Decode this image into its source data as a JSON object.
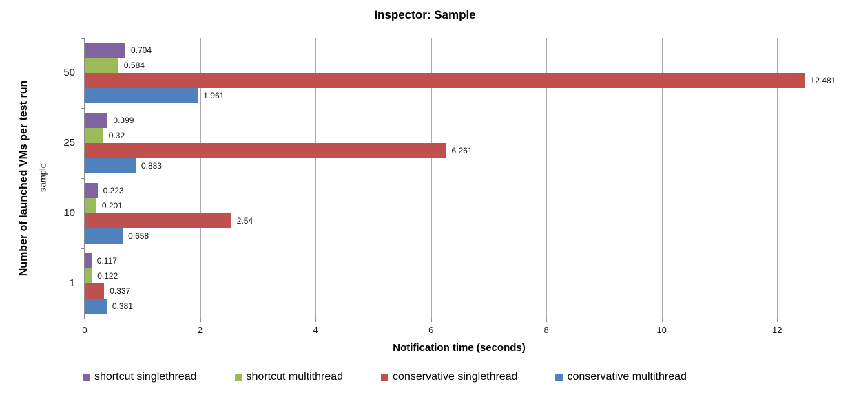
{
  "title": "Inspector: Sample",
  "chart_data": {
    "type": "bar",
    "orientation": "horizontal",
    "title": "Inspector: Sample",
    "xlabel": "Notification time (seconds)",
    "ylabel_outer": "Number of launched VMs per test run",
    "ylabel_inner": "sample",
    "categories": [
      "50",
      "25",
      "10",
      "1"
    ],
    "series": [
      {
        "name": "shortcut singlethread",
        "color": "#8064A2",
        "values": [
          0.704,
          0.399,
          0.223,
          0.117
        ],
        "labels": [
          "0.704",
          "0.399",
          "0.223",
          "0.117"
        ]
      },
      {
        "name": "shortcut multithread",
        "color": "#9BBB59",
        "values": [
          0.584,
          0.32,
          0.201,
          0.122
        ],
        "labels": [
          "0.584",
          "0.32",
          "0.201",
          "0.122"
        ]
      },
      {
        "name": "conservative singlethread",
        "color": "#C0504D",
        "values": [
          12.481,
          6.261,
          2.54,
          0.337
        ],
        "labels": [
          "12.481",
          "6.261",
          "2.54",
          "0.337"
        ]
      },
      {
        "name": "conservative multithread",
        "color": "#4F81BD",
        "values": [
          1.961,
          0.883,
          0.658,
          0.381
        ],
        "labels": [
          "1.961",
          "0.883",
          "0.658",
          "0.381"
        ]
      }
    ],
    "xlim": [
      0,
      13
    ],
    "xticks": [
      0,
      2,
      4,
      6,
      8,
      10,
      12
    ],
    "grid": true,
    "legend_position": "bottom"
  },
  "style": {
    "axis_color": "#8c8c8c",
    "grid_color": "#a9a9a9",
    "background": "#ffffff"
  }
}
